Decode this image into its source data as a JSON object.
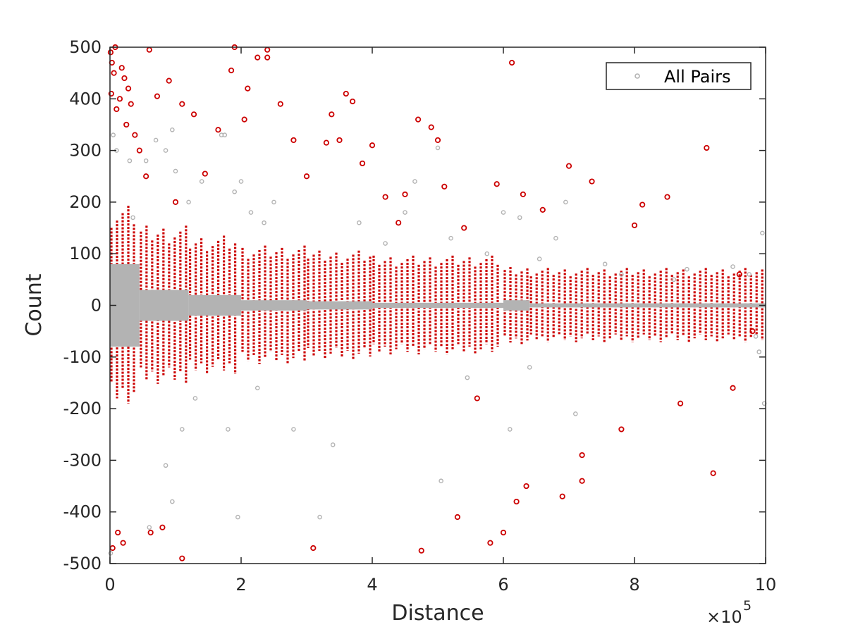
{
  "chart_data": {
    "type": "scatter",
    "title": "",
    "xlabel": "Distance",
    "ylabel": "Count",
    "x_exponent_label": "×10",
    "x_exponent_power": "5",
    "xlim": [
      0,
      1000000
    ],
    "ylim": [
      -500,
      500
    ],
    "x_tick_values": [
      0,
      200000,
      400000,
      600000,
      800000,
      1000000
    ],
    "x_tick_labels": [
      "0",
      "2",
      "4",
      "6",
      "8",
      "10"
    ],
    "y_tick_values": [
      500,
      400,
      300,
      200,
      100,
      0,
      -100,
      -200,
      -300,
      -400,
      -500
    ],
    "y_tick_labels": [
      "500",
      "400",
      "300",
      "200",
      "100",
      "0",
      "-100",
      "-200",
      "-300",
      "-400",
      "-500"
    ],
    "grid": false,
    "legend": {
      "position": "top-right",
      "entries": [
        "All Pairs"
      ]
    },
    "colors": {
      "all_pairs": "#b3b3b3",
      "highlight": "#cc0000",
      "axis": "#262626"
    },
    "series": [
      {
        "name": "All Pairs",
        "color": "#b3b3b3",
        "points": [
          [
            1000,
            -480
          ],
          [
            5000,
            330
          ],
          [
            10000,
            300
          ],
          [
            30000,
            280
          ],
          [
            35000,
            170
          ],
          [
            55000,
            280
          ],
          [
            70000,
            320
          ],
          [
            85000,
            300
          ],
          [
            95000,
            340
          ],
          [
            100000,
            260
          ],
          [
            120000,
            200
          ],
          [
            140000,
            240
          ],
          [
            175000,
            330
          ],
          [
            190000,
            220
          ],
          [
            200000,
            240
          ],
          [
            215000,
            180
          ],
          [
            225000,
            -160
          ],
          [
            180000,
            -240
          ],
          [
            195000,
            -410
          ],
          [
            85000,
            -310
          ],
          [
            95000,
            -380
          ],
          [
            60000,
            -430
          ],
          [
            110000,
            -240
          ],
          [
            130000,
            -180
          ],
          [
            170000,
            330
          ],
          [
            235000,
            160
          ],
          [
            250000,
            200
          ],
          [
            280000,
            -240
          ],
          [
            320000,
            -410
          ],
          [
            340000,
            -270
          ],
          [
            380000,
            160
          ],
          [
            420000,
            120
          ],
          [
            450000,
            180
          ],
          [
            465000,
            240
          ],
          [
            500000,
            305
          ],
          [
            505000,
            -340
          ],
          [
            520000,
            130
          ],
          [
            545000,
            -140
          ],
          [
            575000,
            100
          ],
          [
            600000,
            180
          ],
          [
            610000,
            -240
          ],
          [
            625000,
            170
          ],
          [
            640000,
            -120
          ],
          [
            655000,
            90
          ],
          [
            680000,
            130
          ],
          [
            695000,
            200
          ],
          [
            710000,
            -210
          ],
          [
            755000,
            80
          ],
          [
            780000,
            60
          ],
          [
            860000,
            50
          ],
          [
            880000,
            70
          ],
          [
            950000,
            75
          ],
          [
            990000,
            -90
          ],
          [
            995000,
            140
          ],
          [
            998000,
            -190
          ],
          [
            975000,
            60
          ],
          [
            985000,
            -60
          ]
        ]
      },
      {
        "name": "",
        "color": "#cc0000",
        "points": [
          [
            1000,
            490
          ],
          [
            2000,
            410
          ],
          [
            3000,
            470
          ],
          [
            4000,
            -470
          ],
          [
            6000,
            450
          ],
          [
            8000,
            500
          ],
          [
            10000,
            380
          ],
          [
            12000,
            -440
          ],
          [
            15000,
            400
          ],
          [
            18000,
            460
          ],
          [
            20000,
            -460
          ],
          [
            22000,
            440
          ],
          [
            25000,
            350
          ],
          [
            28000,
            420
          ],
          [
            32000,
            390
          ],
          [
            38000,
            330
          ],
          [
            45000,
            300
          ],
          [
            55000,
            250
          ],
          [
            60000,
            495
          ],
          [
            62000,
            -440
          ],
          [
            72000,
            405
          ],
          [
            80000,
            -430
          ],
          [
            90000,
            435
          ],
          [
            100000,
            200
          ],
          [
            110000,
            390
          ],
          [
            110000,
            -490
          ],
          [
            128000,
            370
          ],
          [
            145000,
            255
          ],
          [
            165000,
            340
          ],
          [
            185000,
            455
          ],
          [
            190000,
            500
          ],
          [
            205000,
            360
          ],
          [
            210000,
            420
          ],
          [
            225000,
            480
          ],
          [
            240000,
            495
          ],
          [
            240000,
            480
          ],
          [
            260000,
            390
          ],
          [
            280000,
            320
          ],
          [
            300000,
            250
          ],
          [
            310000,
            -470
          ],
          [
            330000,
            315
          ],
          [
            338000,
            370
          ],
          [
            350000,
            320
          ],
          [
            360000,
            410
          ],
          [
            370000,
            395
          ],
          [
            385000,
            275
          ],
          [
            400000,
            310
          ],
          [
            420000,
            210
          ],
          [
            440000,
            160
          ],
          [
            450000,
            215
          ],
          [
            470000,
            360
          ],
          [
            475000,
            -475
          ],
          [
            490000,
            345
          ],
          [
            500000,
            320
          ],
          [
            510000,
            230
          ],
          [
            530000,
            -410
          ],
          [
            540000,
            150
          ],
          [
            560000,
            -180
          ],
          [
            580000,
            -460
          ],
          [
            590000,
            235
          ],
          [
            600000,
            -440
          ],
          [
            613000,
            470
          ],
          [
            620000,
            -380
          ],
          [
            630000,
            215
          ],
          [
            635000,
            -350
          ],
          [
            660000,
            185
          ],
          [
            690000,
            -370
          ],
          [
            700000,
            270
          ],
          [
            720000,
            -340
          ],
          [
            720000,
            -290
          ],
          [
            735000,
            240
          ],
          [
            780000,
            -240
          ],
          [
            800000,
            155
          ],
          [
            812000,
            195
          ],
          [
            850000,
            210
          ],
          [
            870000,
            -190
          ],
          [
            910000,
            305
          ],
          [
            920000,
            -325
          ],
          [
            950000,
            -160
          ],
          [
            960000,
            60
          ],
          [
            980000,
            -50
          ]
        ]
      }
    ],
    "bands": [
      {
        "x0": 0,
        "x1": 45000,
        "gray": [
          -80,
          80
        ],
        "red": [
          -200,
          200
        ]
      },
      {
        "x0": 45000,
        "x1": 120000,
        "gray": [
          -30,
          30
        ],
        "red": [
          -160,
          160
        ]
      },
      {
        "x0": 120000,
        "x1": 200000,
        "gray": [
          -20,
          20
        ],
        "red": [
          -140,
          140
        ]
      },
      {
        "x0": 200000,
        "x1": 300000,
        "gray": [
          -10,
          10
        ],
        "red": [
          -120,
          120
        ]
      },
      {
        "x0": 300000,
        "x1": 400000,
        "gray": [
          -8,
          8
        ],
        "red": [
          -110,
          110
        ]
      },
      {
        "x0": 400000,
        "x1": 600000,
        "gray": [
          -5,
          5
        ],
        "red": [
          -100,
          100
        ]
      },
      {
        "x0": 600000,
        "x1": 640000,
        "gray": [
          -10,
          10
        ],
        "red": [
          -80,
          80
        ]
      },
      {
        "x0": 640000,
        "x1": 1000000,
        "gray": [
          -4,
          4
        ],
        "red": [
          -75,
          75
        ]
      }
    ]
  }
}
